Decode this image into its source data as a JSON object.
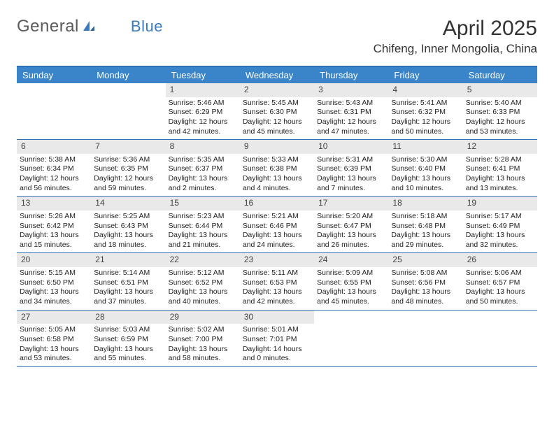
{
  "logo": {
    "text1": "General",
    "text2": "Blue"
  },
  "title": "April 2025",
  "location": "Chifeng, Inner Mongolia, China",
  "colors": {
    "header_bg": "#3a85c9",
    "border": "#2d72b8",
    "daynum_bg": "#e9e9e9",
    "text": "#222222",
    "logo_gray": "#5a5a5a",
    "logo_blue": "#3a7bbf"
  },
  "day_labels": [
    "Sunday",
    "Monday",
    "Tuesday",
    "Wednesday",
    "Thursday",
    "Friday",
    "Saturday"
  ],
  "weeks": [
    [
      null,
      null,
      {
        "n": "1",
        "sr": "Sunrise: 5:46 AM",
        "ss": "Sunset: 6:29 PM",
        "dl": "Daylight: 12 hours and 42 minutes."
      },
      {
        "n": "2",
        "sr": "Sunrise: 5:45 AM",
        "ss": "Sunset: 6:30 PM",
        "dl": "Daylight: 12 hours and 45 minutes."
      },
      {
        "n": "3",
        "sr": "Sunrise: 5:43 AM",
        "ss": "Sunset: 6:31 PM",
        "dl": "Daylight: 12 hours and 47 minutes."
      },
      {
        "n": "4",
        "sr": "Sunrise: 5:41 AM",
        "ss": "Sunset: 6:32 PM",
        "dl": "Daylight: 12 hours and 50 minutes."
      },
      {
        "n": "5",
        "sr": "Sunrise: 5:40 AM",
        "ss": "Sunset: 6:33 PM",
        "dl": "Daylight: 12 hours and 53 minutes."
      }
    ],
    [
      {
        "n": "6",
        "sr": "Sunrise: 5:38 AM",
        "ss": "Sunset: 6:34 PM",
        "dl": "Daylight: 12 hours and 56 minutes."
      },
      {
        "n": "7",
        "sr": "Sunrise: 5:36 AM",
        "ss": "Sunset: 6:35 PM",
        "dl": "Daylight: 12 hours and 59 minutes."
      },
      {
        "n": "8",
        "sr": "Sunrise: 5:35 AM",
        "ss": "Sunset: 6:37 PM",
        "dl": "Daylight: 13 hours and 2 minutes."
      },
      {
        "n": "9",
        "sr": "Sunrise: 5:33 AM",
        "ss": "Sunset: 6:38 PM",
        "dl": "Daylight: 13 hours and 4 minutes."
      },
      {
        "n": "10",
        "sr": "Sunrise: 5:31 AM",
        "ss": "Sunset: 6:39 PM",
        "dl": "Daylight: 13 hours and 7 minutes."
      },
      {
        "n": "11",
        "sr": "Sunrise: 5:30 AM",
        "ss": "Sunset: 6:40 PM",
        "dl": "Daylight: 13 hours and 10 minutes."
      },
      {
        "n": "12",
        "sr": "Sunrise: 5:28 AM",
        "ss": "Sunset: 6:41 PM",
        "dl": "Daylight: 13 hours and 13 minutes."
      }
    ],
    [
      {
        "n": "13",
        "sr": "Sunrise: 5:26 AM",
        "ss": "Sunset: 6:42 PM",
        "dl": "Daylight: 13 hours and 15 minutes."
      },
      {
        "n": "14",
        "sr": "Sunrise: 5:25 AM",
        "ss": "Sunset: 6:43 PM",
        "dl": "Daylight: 13 hours and 18 minutes."
      },
      {
        "n": "15",
        "sr": "Sunrise: 5:23 AM",
        "ss": "Sunset: 6:44 PM",
        "dl": "Daylight: 13 hours and 21 minutes."
      },
      {
        "n": "16",
        "sr": "Sunrise: 5:21 AM",
        "ss": "Sunset: 6:46 PM",
        "dl": "Daylight: 13 hours and 24 minutes."
      },
      {
        "n": "17",
        "sr": "Sunrise: 5:20 AM",
        "ss": "Sunset: 6:47 PM",
        "dl": "Daylight: 13 hours and 26 minutes."
      },
      {
        "n": "18",
        "sr": "Sunrise: 5:18 AM",
        "ss": "Sunset: 6:48 PM",
        "dl": "Daylight: 13 hours and 29 minutes."
      },
      {
        "n": "19",
        "sr": "Sunrise: 5:17 AM",
        "ss": "Sunset: 6:49 PM",
        "dl": "Daylight: 13 hours and 32 minutes."
      }
    ],
    [
      {
        "n": "20",
        "sr": "Sunrise: 5:15 AM",
        "ss": "Sunset: 6:50 PM",
        "dl": "Daylight: 13 hours and 34 minutes."
      },
      {
        "n": "21",
        "sr": "Sunrise: 5:14 AM",
        "ss": "Sunset: 6:51 PM",
        "dl": "Daylight: 13 hours and 37 minutes."
      },
      {
        "n": "22",
        "sr": "Sunrise: 5:12 AM",
        "ss": "Sunset: 6:52 PM",
        "dl": "Daylight: 13 hours and 40 minutes."
      },
      {
        "n": "23",
        "sr": "Sunrise: 5:11 AM",
        "ss": "Sunset: 6:53 PM",
        "dl": "Daylight: 13 hours and 42 minutes."
      },
      {
        "n": "24",
        "sr": "Sunrise: 5:09 AM",
        "ss": "Sunset: 6:55 PM",
        "dl": "Daylight: 13 hours and 45 minutes."
      },
      {
        "n": "25",
        "sr": "Sunrise: 5:08 AM",
        "ss": "Sunset: 6:56 PM",
        "dl": "Daylight: 13 hours and 48 minutes."
      },
      {
        "n": "26",
        "sr": "Sunrise: 5:06 AM",
        "ss": "Sunset: 6:57 PM",
        "dl": "Daylight: 13 hours and 50 minutes."
      }
    ],
    [
      {
        "n": "27",
        "sr": "Sunrise: 5:05 AM",
        "ss": "Sunset: 6:58 PM",
        "dl": "Daylight: 13 hours and 53 minutes."
      },
      {
        "n": "28",
        "sr": "Sunrise: 5:03 AM",
        "ss": "Sunset: 6:59 PM",
        "dl": "Daylight: 13 hours and 55 minutes."
      },
      {
        "n": "29",
        "sr": "Sunrise: 5:02 AM",
        "ss": "Sunset: 7:00 PM",
        "dl": "Daylight: 13 hours and 58 minutes."
      },
      {
        "n": "30",
        "sr": "Sunrise: 5:01 AM",
        "ss": "Sunset: 7:01 PM",
        "dl": "Daylight: 14 hours and 0 minutes."
      },
      null,
      null,
      null
    ]
  ]
}
